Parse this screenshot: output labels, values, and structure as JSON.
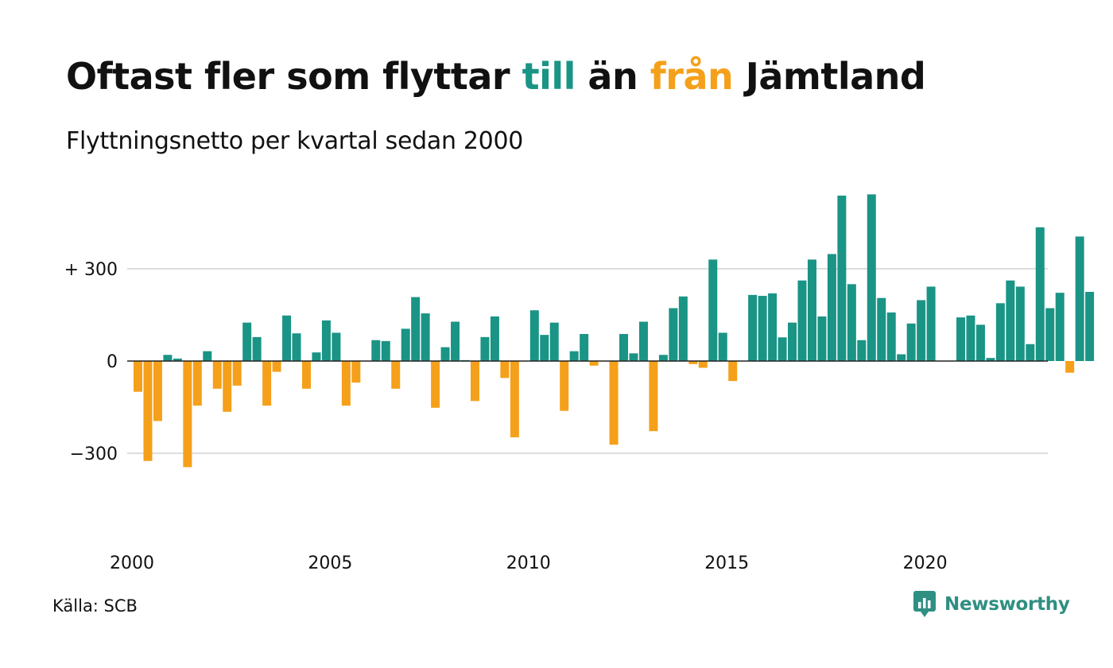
{
  "title": {
    "part1": "Oftast fler som flyttar ",
    "till": "till",
    "part2": " än ",
    "fran": "från",
    "part3": " Jämtland"
  },
  "subtitle": "Flyttningsnetto per kvartal sedan 2000",
  "source": "Källa: SCB",
  "brand": {
    "name": "Newsworthy",
    "icon": "newsworthy-logo-icon"
  },
  "colors": {
    "positive": "#1a9485",
    "negative": "#f5a01a",
    "grid": "#dddddd",
    "zero_line": "#222222"
  },
  "chart_data": {
    "type": "bar",
    "title": "",
    "xlabel": "",
    "ylabel": "",
    "x_ticks": [
      "2000",
      "2005",
      "2010",
      "2015",
      "2020"
    ],
    "y_ticks": [
      {
        "value": 300,
        "label": "+ 300"
      },
      {
        "value": 0,
        "label": "0"
      },
      {
        "value": -300,
        "label": "−300"
      }
    ],
    "ylim": [
      -550,
      550
    ],
    "grid": true,
    "legend": "none",
    "x_start": "2000 Q1",
    "frequency": "quarterly",
    "values": [
      -100,
      -325,
      -195,
      20,
      8,
      -345,
      -145,
      32,
      -90,
      -165,
      -80,
      125,
      78,
      -145,
      -35,
      148,
      90,
      -90,
      28,
      132,
      92,
      -145,
      -70,
      0,
      68,
      65,
      -90,
      105,
      208,
      155,
      -152,
      45,
      128,
      3,
      -130,
      78,
      145,
      -55,
      -248,
      0,
      165,
      85,
      125,
      -162,
      32,
      88,
      -15,
      0,
      -272,
      88,
      25,
      128,
      -228,
      20,
      172,
      210,
      -10,
      -22,
      330,
      92,
      -65,
      0,
      215,
      212,
      220,
      77,
      125,
      262,
      330,
      145,
      348,
      538,
      250,
      68,
      542,
      205,
      158,
      22,
      122,
      198,
      242,
      0,
      0,
      142,
      148,
      118,
      10,
      188,
      262,
      242,
      55,
      435,
      172,
      222,
      -38,
      405,
      225
    ]
  }
}
